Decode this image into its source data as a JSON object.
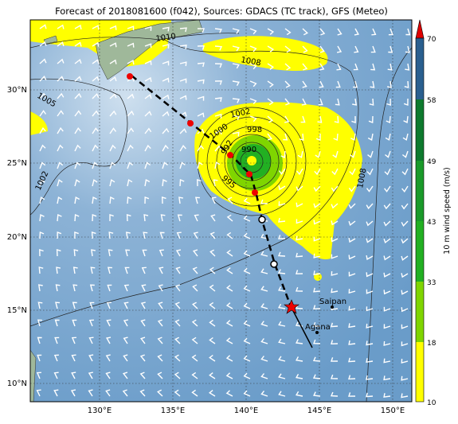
{
  "title": "Forecast of 2018081600 (f042), Sources: GDACS (TC track), GFS (Meteo)",
  "map": {
    "lat_labels": [
      "30°N",
      "25°N",
      "20°N",
      "15°N",
      "10°N"
    ],
    "lon_labels": [
      "130°E",
      "135°E",
      "140°E",
      "145°E",
      "150°E"
    ],
    "places": [
      "Saipan",
      "Agana"
    ],
    "isobar_labels": [
      "1010",
      "1008",
      "1005",
      "1002",
      "1002",
      "1000",
      "998",
      "990",
      "992",
      "995",
      "1008"
    ]
  },
  "colorbar": {
    "label": "10 m wind speed (m/s)",
    "ticks": [
      "70",
      "58",
      "49",
      "43",
      "33",
      "18",
      "10"
    ]
  }
}
